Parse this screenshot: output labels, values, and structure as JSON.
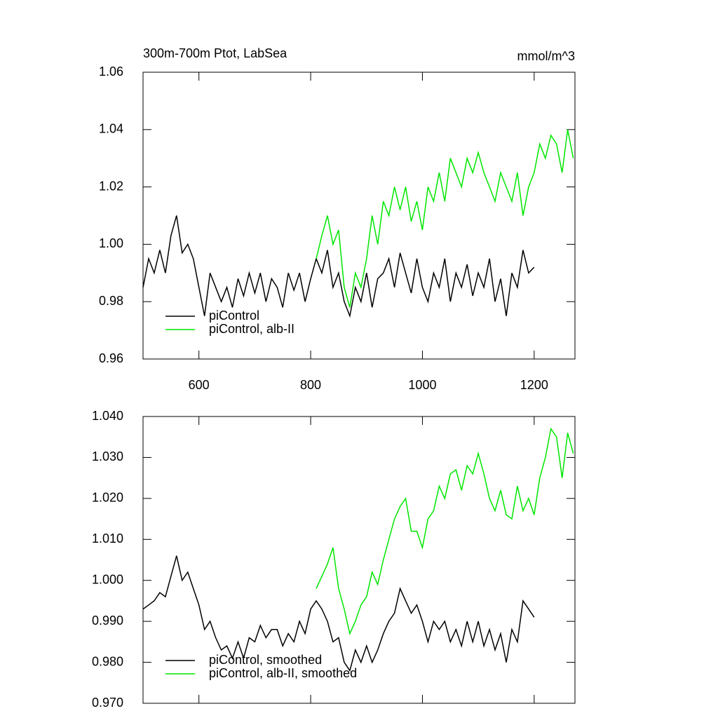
{
  "chart_data": [
    {
      "type": "line",
      "title": "300m-700m Ptot, LabSea",
      "units": "mmol/m^3",
      "xlim": [
        500,
        1273
      ],
      "xticks": [
        600,
        800,
        1000,
        1200
      ],
      "show_xtick_labels": true,
      "ylim": [
        0.96,
        1.06
      ],
      "yticks": [
        0.96,
        0.98,
        {
          "value": 1,
          "label": "1.00"
        },
        1.02,
        1.04,
        1.06
      ],
      "legend": "lower left",
      "series": [
        {
          "name": "piControl",
          "color": "#000000",
          "x": [
            500,
            510,
            520,
            530,
            540,
            550,
            560,
            570,
            580,
            590,
            600,
            610,
            620,
            630,
            640,
            650,
            660,
            670,
            680,
            690,
            700,
            710,
            720,
            730,
            740,
            750,
            760,
            770,
            780,
            790,
            800,
            810,
            820,
            830,
            840,
            850,
            860,
            870,
            880,
            890,
            900,
            910,
            920,
            930,
            940,
            950,
            960,
            970,
            980,
            990,
            1000,
            1010,
            1020,
            1030,
            1040,
            1050,
            1060,
            1070,
            1080,
            1090,
            1100,
            1110,
            1120,
            1130,
            1140,
            1150,
            1160,
            1170,
            1180,
            1190,
            1200
          ],
          "values": [
            0.985,
            0.995,
            0.99,
            0.998,
            0.99,
            1.003,
            1.01,
            0.997,
            1.0,
            0.995,
            0.985,
            0.975,
            0.99,
            0.985,
            0.98,
            0.985,
            0.978,
            0.988,
            0.982,
            0.99,
            0.983,
            0.99,
            0.98,
            0.988,
            0.985,
            0.978,
            0.99,
            0.984,
            0.99,
            0.98,
            0.988,
            0.995,
            0.99,
            0.998,
            0.985,
            0.99,
            0.98,
            0.975,
            0.985,
            0.98,
            0.99,
            0.978,
            0.988,
            0.99,
            0.995,
            0.985,
            0.997,
            0.99,
            0.983,
            0.995,
            0.985,
            0.98,
            0.99,
            0.985,
            0.995,
            0.98,
            0.99,
            0.985,
            0.993,
            0.982,
            0.99,
            0.985,
            0.995,
            0.98,
            0.988,
            0.975,
            0.99,
            0.985,
            0.998,
            0.99,
            0.992
          ]
        },
        {
          "name": "piControl, alb-II",
          "color": "#00e600",
          "x": [
            810,
            820,
            830,
            840,
            850,
            860,
            870,
            880,
            890,
            900,
            910,
            920,
            930,
            940,
            950,
            960,
            970,
            980,
            990,
            1000,
            1010,
            1020,
            1030,
            1040,
            1050,
            1060,
            1070,
            1080,
            1090,
            1100,
            1110,
            1120,
            1130,
            1140,
            1150,
            1160,
            1170,
            1180,
            1190,
            1200,
            1210,
            1220,
            1230,
            1240,
            1250,
            1260,
            1270
          ],
          "values": [
            0.995,
            1.003,
            1.01,
            1.0,
            1.005,
            0.985,
            0.978,
            0.99,
            0.985,
            0.995,
            1.01,
            1.0,
            1.015,
            1.01,
            1.02,
            1.012,
            1.02,
            1.008,
            1.015,
            1.005,
            1.02,
            1.015,
            1.025,
            1.015,
            1.03,
            1.025,
            1.02,
            1.03,
            1.025,
            1.032,
            1.025,
            1.02,
            1.015,
            1.025,
            1.02,
            1.015,
            1.025,
            1.01,
            1.02,
            1.025,
            1.035,
            1.03,
            1.038,
            1.035,
            1.025,
            1.04,
            1.03
          ]
        }
      ]
    },
    {
      "type": "line",
      "xlim": [
        500,
        1273
      ],
      "xticks": [
        600,
        800,
        1000,
        1200
      ],
      "show_xtick_labels": false,
      "ylim": [
        0.97,
        1.04
      ],
      "yticks": [
        {
          "value": 0.97,
          "label": "0.970"
        },
        {
          "value": 0.98,
          "label": "0.980"
        },
        {
          "value": 0.99,
          "label": "0.990"
        },
        {
          "value": 1,
          "label": "1.000"
        },
        {
          "value": 1.01,
          "label": "1.010"
        },
        {
          "value": 1.02,
          "label": "1.020"
        },
        {
          "value": 1.03,
          "label": "1.030"
        },
        {
          "value": 1.04,
          "label": "1.040"
        }
      ],
      "legend": "lower left",
      "series": [
        {
          "name": "piControl, smoothed",
          "color": "#000000",
          "x": [
            500,
            510,
            520,
            530,
            540,
            550,
            560,
            570,
            580,
            590,
            600,
            610,
            620,
            630,
            640,
            650,
            660,
            670,
            680,
            690,
            700,
            710,
            720,
            730,
            740,
            750,
            760,
            770,
            780,
            790,
            800,
            810,
            820,
            830,
            840,
            850,
            860,
            870,
            880,
            890,
            900,
            910,
            920,
            930,
            940,
            950,
            960,
            970,
            980,
            990,
            1000,
            1010,
            1020,
            1030,
            1040,
            1050,
            1060,
            1070,
            1080,
            1090,
            1100,
            1110,
            1120,
            1130,
            1140,
            1150,
            1160,
            1170,
            1180,
            1190,
            1200
          ],
          "values": [
            0.993,
            0.994,
            0.995,
            0.997,
            0.996,
            1.001,
            1.006,
            1.0,
            1.002,
            0.998,
            0.994,
            0.988,
            0.99,
            0.986,
            0.983,
            0.984,
            0.981,
            0.985,
            0.981,
            0.986,
            0.985,
            0.989,
            0.986,
            0.988,
            0.988,
            0.984,
            0.987,
            0.985,
            0.99,
            0.987,
            0.993,
            0.995,
            0.993,
            0.99,
            0.985,
            0.986,
            0.98,
            0.978,
            0.983,
            0.98,
            0.984,
            0.98,
            0.983,
            0.987,
            0.99,
            0.992,
            0.998,
            0.995,
            0.992,
            0.994,
            0.99,
            0.985,
            0.99,
            0.988,
            0.99,
            0.985,
            0.988,
            0.984,
            0.99,
            0.985,
            0.99,
            0.984,
            0.988,
            0.983,
            0.987,
            0.98,
            0.988,
            0.985,
            0.995,
            0.993,
            0.991
          ]
        },
        {
          "name": "piControl, alb-II, smoothed",
          "color": "#00e600",
          "x": [
            810,
            820,
            830,
            840,
            850,
            860,
            870,
            880,
            890,
            900,
            910,
            920,
            930,
            940,
            950,
            960,
            970,
            980,
            990,
            1000,
            1010,
            1020,
            1030,
            1040,
            1050,
            1060,
            1070,
            1080,
            1090,
            1100,
            1110,
            1120,
            1130,
            1140,
            1150,
            1160,
            1170,
            1180,
            1190,
            1200,
            1210,
            1220,
            1230,
            1240,
            1250,
            1260,
            1270
          ],
          "values": [
            0.998,
            1.001,
            1.004,
            1.008,
            0.998,
            0.993,
            0.987,
            0.99,
            0.994,
            0.996,
            1.002,
            0.999,
            1.005,
            1.01,
            1.015,
            1.018,
            1.02,
            1.012,
            1.012,
            1.008,
            1.015,
            1.017,
            1.023,
            1.02,
            1.026,
            1.027,
            1.022,
            1.028,
            1.026,
            1.031,
            1.026,
            1.02,
            1.017,
            1.022,
            1.016,
            1.015,
            1.023,
            1.017,
            1.02,
            1.016,
            1.025,
            1.03,
            1.037,
            1.035,
            1.025,
            1.036,
            1.031
          ]
        }
      ]
    }
  ]
}
